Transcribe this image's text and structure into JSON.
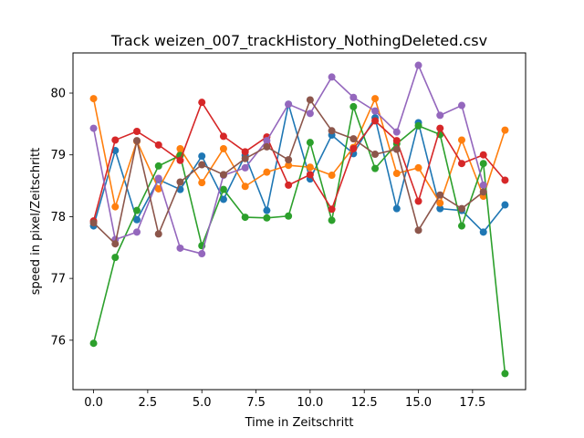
{
  "chart_data": {
    "type": "line",
    "title": "Track weizen_007_trackHistory_NothingDeleted.csv",
    "xlabel": "Time in Zeitschritt",
    "ylabel": "speed in pixel/Zeitschritt",
    "xlim": [
      -0.95,
      19.95
    ],
    "ylim": [
      75.2,
      80.65
    ],
    "xticks": [
      0.0,
      2.5,
      5.0,
      7.5,
      10.0,
      12.5,
      15.0,
      17.5
    ],
    "xtick_labels": [
      "0.0",
      "2.5",
      "5.0",
      "7.5",
      "10.0",
      "12.5",
      "15.0",
      "17.5"
    ],
    "yticks": [
      76,
      77,
      78,
      79,
      80
    ],
    "ytick_labels": [
      "76",
      "77",
      "78",
      "79",
      "80"
    ],
    "grid": false,
    "legend": "none",
    "x": [
      0,
      1,
      2,
      3,
      4,
      5,
      6,
      7,
      8,
      9,
      10,
      11,
      12,
      13,
      14,
      15,
      16,
      17,
      18,
      19
    ],
    "series": [
      {
        "color": "#1f77b4",
        "values": [
          77.85,
          79.07,
          77.95,
          78.6,
          78.44,
          78.98,
          78.28,
          78.99,
          78.1,
          79.82,
          78.61,
          79.32,
          79.02,
          79.6,
          78.13,
          79.52,
          78.13,
          78.1,
          77.75,
          78.19
        ]
      },
      {
        "color": "#ff7f0e",
        "values": [
          79.91,
          78.16,
          79.22,
          78.45,
          79.1,
          78.55,
          79.1,
          78.49,
          78.72,
          78.83,
          78.8,
          78.67,
          79.12,
          79.91,
          78.7,
          78.79,
          78.22,
          79.24,
          78.33,
          79.4
        ]
      },
      {
        "color": "#2ca02c",
        "values": [
          75.95,
          77.34,
          78.1,
          78.82,
          78.99,
          77.53,
          78.44,
          77.99,
          77.98,
          78.01,
          79.2,
          77.94,
          79.78,
          78.78,
          79.18,
          79.47,
          79.33,
          77.85,
          78.86,
          75.46
        ]
      },
      {
        "color": "#d62728",
        "values": [
          77.93,
          79.24,
          79.38,
          79.16,
          78.91,
          79.85,
          79.3,
          79.05,
          79.29,
          78.51,
          78.68,
          78.12,
          79.1,
          79.55,
          79.23,
          78.25,
          79.43,
          78.86,
          79.0,
          78.59
        ]
      },
      {
        "color": "#9467bd",
        "values": [
          79.43,
          77.63,
          77.75,
          78.62,
          77.49,
          77.4,
          78.67,
          78.79,
          79.23,
          79.82,
          79.67,
          80.26,
          79.93,
          79.71,
          79.37,
          80.45,
          79.64,
          79.8,
          78.51,
          null
        ]
      },
      {
        "color": "#8c564b",
        "values": [
          77.9,
          77.56,
          79.23,
          77.72,
          78.56,
          78.84,
          78.68,
          78.94,
          79.13,
          78.92,
          79.89,
          79.39,
          79.26,
          79.01,
          79.09,
          77.78,
          78.35,
          78.13,
          78.4,
          null
        ]
      }
    ]
  }
}
